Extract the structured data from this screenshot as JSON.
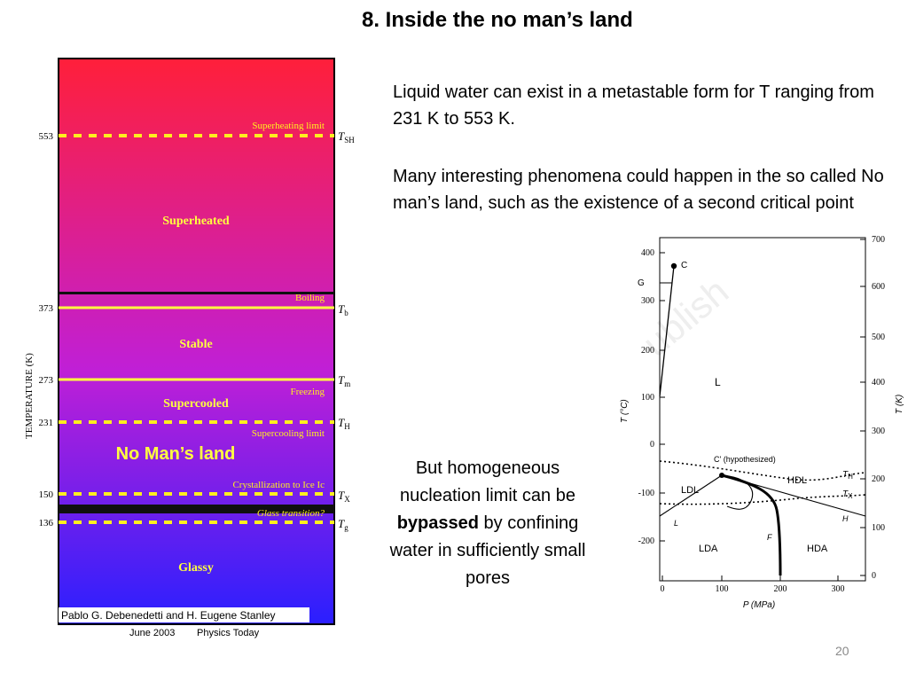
{
  "slide": {
    "title": "8. Inside the no man’s land",
    "para1": "Liquid water can exist in a metastable form for T ranging from 231 K to 553 K.",
    "para2": "Many interesting phenomena could happen in the so called No man’s land, such as the existence of a second critical point",
    "bypass_before": "But homogeneous nucleation limit can be ",
    "bypass_bold": "bypassed",
    "bypass_after": " by confining water in sufficiently small pores",
    "page_number": "20"
  },
  "left_diagram": {
    "y_axis_label": "TEMPERATURE (K)",
    "colors": {
      "top": "#ff1f3a",
      "mid": "#c01fd6",
      "bottom": "#2a1fff",
      "dashed": "#ffee1f",
      "solid": "#ffff40",
      "label_text": "#ffee1f",
      "region_text": "#ffff40",
      "band": "#101010"
    },
    "levels": [
      {
        "value": "553",
        "symbol": "T",
        "sub": "SH",
        "label": "Superheating limit",
        "style": "dashed"
      },
      {
        "value": "",
        "symbol": "",
        "sub": "",
        "label": "Boiling",
        "style": "band"
      },
      {
        "value": "373",
        "symbol": "T",
        "sub": "b",
        "label": "",
        "style": "solid"
      },
      {
        "value": "273",
        "symbol": "T",
        "sub": "m",
        "label": "Freezing",
        "style": "solid"
      },
      {
        "value": "231",
        "symbol": "T",
        "sub": "H",
        "label": "Supercooling limit",
        "style": "dashed"
      },
      {
        "value": "150",
        "symbol": "T",
        "sub": "X",
        "label": "Crystallization to Ice Ic",
        "style": "dashed"
      },
      {
        "value": "",
        "symbol": "",
        "sub": "",
        "label": "Glass transition?",
        "style": "band"
      },
      {
        "value": "136",
        "symbol": "T",
        "sub": "g",
        "label": "",
        "style": "dashed"
      }
    ],
    "regions": [
      "Superheated",
      "Stable",
      "Supercooled",
      "Glassy"
    ],
    "no_mans_land": "No Man’s land",
    "credit_authors": "Pablo G. Debenedetti and H. Eugene Stanley",
    "credit_date": "June 2003",
    "credit_journal": "Physics Today"
  },
  "phase_diagram": {
    "left_ticks_c": [
      "400",
      "300",
      "200",
      "100",
      "0",
      "-100",
      "-200"
    ],
    "right_ticks_k": [
      "700",
      "600",
      "500",
      "400",
      "300",
      "200",
      "100",
      "0"
    ],
    "bottom_ticks_mpa": [
      "0",
      "100",
      "200",
      "300"
    ],
    "left_label": "T (°C)",
    "right_label": "T (K)",
    "bottom_label": "P (MPa)",
    "point_g": "G",
    "point_c": "C",
    "point_cprime": "C' (hypothesized)",
    "regions": [
      "L",
      "LDL",
      "HDL",
      "LDA",
      "HDA"
    ],
    "curve_labels": [
      "L",
      "F",
      "H"
    ],
    "th_symbol": "T",
    "th_sub": "H",
    "tx_symbol": "T",
    "tx_sub": "X",
    "watermark": "ublish"
  }
}
